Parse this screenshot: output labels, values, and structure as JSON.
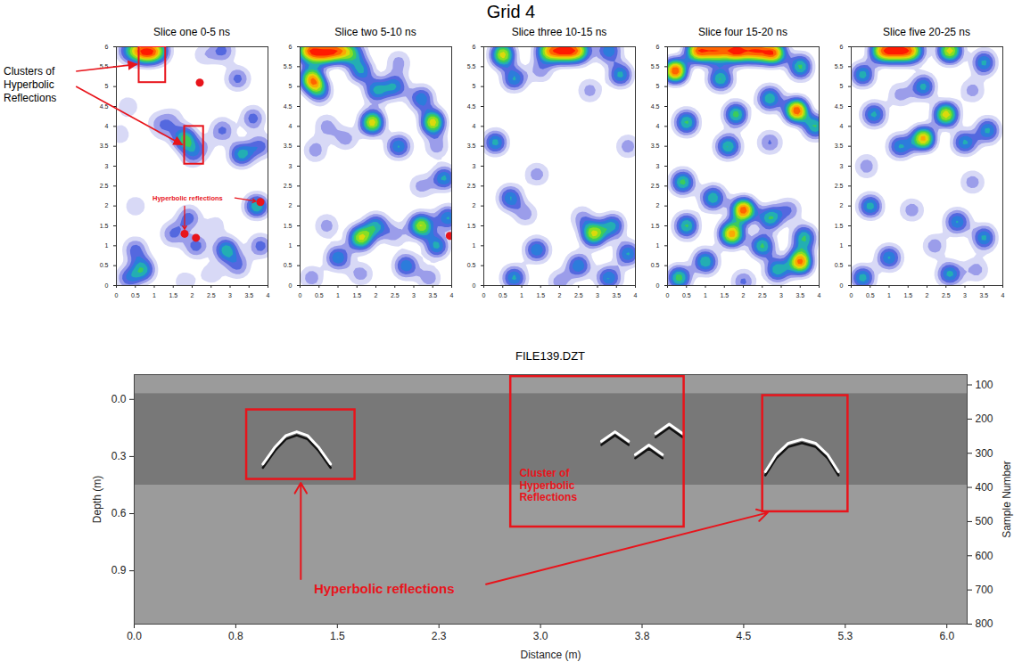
{
  "title": "Grid 4",
  "chart_data": [
    {
      "type": "contour",
      "title": "Slice one 0-5 ns",
      "xlim": [
        0,
        4
      ],
      "ylim": [
        0,
        6
      ],
      "xticks": [
        0,
        0.5,
        1,
        1.5,
        2,
        2.5,
        3,
        3.5,
        4
      ],
      "yticks": [
        0,
        0.5,
        1,
        1.5,
        2,
        2.5,
        3,
        3.5,
        4,
        4.5,
        5,
        5.5,
        6
      ],
      "anomalies": [
        [
          0.6,
          5.9,
          1
        ],
        [
          0.85,
          5.85,
          1
        ],
        [
          1.1,
          5.9,
          1
        ],
        [
          0.3,
          5.9,
          0.6
        ],
        [
          2.3,
          5.8,
          0.3
        ],
        [
          2.8,
          5.9,
          0.6
        ],
        [
          3.2,
          5.2,
          0.6
        ],
        [
          0.3,
          4.5,
          0.3
        ],
        [
          1.5,
          4.2,
          0.3
        ],
        [
          1.1,
          4.1,
          0.3
        ],
        [
          1.8,
          3.7,
          1
        ],
        [
          2.0,
          3.3,
          0.6
        ],
        [
          2.3,
          3.5,
          0.3
        ],
        [
          2.8,
          3.9,
          0.6
        ],
        [
          3.3,
          3.3,
          1
        ],
        [
          3.8,
          3.5,
          0.6
        ],
        [
          1.3,
          3.9,
          0.3
        ],
        [
          0.1,
          3.8,
          0.3
        ],
        [
          3.6,
          4.2,
          0.6
        ],
        [
          0.5,
          2.0,
          0.3
        ],
        [
          3.7,
          2.0,
          1
        ],
        [
          1.9,
          1.7,
          0.6
        ],
        [
          1.5,
          1.3,
          0.6
        ],
        [
          2.1,
          1.0,
          0.6
        ],
        [
          2.6,
          1.5,
          0.3
        ],
        [
          0.5,
          0.9,
          0.6
        ],
        [
          0.7,
          0.4,
          1
        ],
        [
          0.3,
          0.2,
          0.6
        ],
        [
          2.9,
          0.9,
          1
        ],
        [
          3.2,
          0.5,
          0.6
        ],
        [
          2.5,
          0.3,
          0.3
        ],
        [
          3.8,
          1.0,
          0.6
        ],
        [
          1.8,
          0.1,
          0.3
        ]
      ],
      "boxes": [
        [
          0.6,
          1.3,
          5.1,
          6
        ],
        [
          1.8,
          2.3,
          3.05,
          4.0
        ]
      ],
      "reflection_points": [
        [
          2.2,
          5.1
        ],
        [
          3.8,
          2.1
        ],
        [
          1.8,
          1.3
        ],
        [
          2.1,
          1.2
        ]
      ],
      "box_label": "Clusters of Hyperbolic Reflections",
      "point_label": "Hyperbolic reflections"
    },
    {
      "type": "contour",
      "title": "Slice two 5-10 ns",
      "xlim": [
        0,
        4
      ],
      "ylim": [
        0,
        6
      ],
      "xticks": [
        0,
        0.5,
        1,
        1.5,
        2,
        2.5,
        3,
        3.5,
        4
      ],
      "yticks": [
        0,
        0.5,
        1,
        1.5,
        2,
        2.5,
        3,
        3.5,
        4,
        4.5,
        5,
        5.5,
        6
      ],
      "anomalies": [
        [
          0.2,
          5.9,
          1
        ],
        [
          0.6,
          5.85,
          1
        ],
        [
          1.0,
          5.9,
          1
        ],
        [
          1.4,
          5.85,
          0.6
        ],
        [
          0.3,
          5.2,
          1
        ],
        [
          0.5,
          4.9,
          0.6
        ],
        [
          1.6,
          5.4,
          0.6
        ],
        [
          2.0,
          4.9,
          0.6
        ],
        [
          2.6,
          5.6,
          0.3
        ],
        [
          2.5,
          5.0,
          0.6
        ],
        [
          3.2,
          4.7,
          0.6
        ],
        [
          3.5,
          4.1,
          1
        ],
        [
          1.9,
          4.1,
          1
        ],
        [
          2.6,
          3.5,
          0.6
        ],
        [
          3.6,
          3.5,
          0.3
        ],
        [
          0.7,
          4.0,
          0.3
        ],
        [
          1.2,
          3.7,
          0.3
        ],
        [
          0.4,
          3.4,
          0.3
        ],
        [
          3.2,
          2.5,
          0.3
        ],
        [
          3.8,
          2.7,
          0.6
        ],
        [
          3.9,
          1.7,
          0.6
        ],
        [
          3.2,
          1.5,
          1
        ],
        [
          3.6,
          1.0,
          0.6
        ],
        [
          2.0,
          1.5,
          0.6
        ],
        [
          1.6,
          1.2,
          1
        ],
        [
          2.5,
          1.3,
          0.3
        ],
        [
          2.8,
          0.5,
          0.6
        ],
        [
          0.7,
          1.5,
          0.3
        ],
        [
          1.0,
          0.7,
          0.6
        ],
        [
          0.3,
          0.2,
          0.3
        ],
        [
          1.6,
          0.3,
          0.3
        ],
        [
          3.4,
          0.2,
          0.3
        ]
      ],
      "reflection_points": [
        [
          3.95,
          1.25
        ]
      ]
    },
    {
      "type": "contour",
      "title": "Slice three 10-15 ns",
      "xlim": [
        0,
        4
      ],
      "ylim": [
        0,
        6
      ],
      "xticks": [
        0,
        0.5,
        1,
        1.5,
        2,
        2.5,
        3,
        3.5,
        4
      ],
      "yticks": [
        0,
        0.5,
        1,
        1.5,
        2,
        2.5,
        3,
        3.5,
        4,
        4.5,
        5,
        5.5,
        6
      ],
      "anomalies": [
        [
          1.7,
          5.9,
          1
        ],
        [
          2.1,
          5.9,
          1
        ],
        [
          2.5,
          5.9,
          1
        ],
        [
          0.5,
          5.8,
          1
        ],
        [
          3.3,
          5.9,
          0.6
        ],
        [
          0.8,
          5.2,
          0.6
        ],
        [
          3.6,
          5.3,
          0.6
        ],
        [
          1.5,
          5.4,
          0.3
        ],
        [
          2.8,
          4.9,
          0.3
        ],
        [
          0.3,
          3.6,
          0.6
        ],
        [
          0.7,
          2.2,
          0.6
        ],
        [
          1.4,
          2.8,
          0.3
        ],
        [
          3.8,
          3.5,
          0.3
        ],
        [
          1.1,
          1.8,
          0.3
        ],
        [
          2.9,
          1.3,
          1
        ],
        [
          3.4,
          1.5,
          0.6
        ],
        [
          3.8,
          0.8,
          0.6
        ],
        [
          2.5,
          0.5,
          0.6
        ],
        [
          1.4,
          0.9,
          0.6
        ],
        [
          0.8,
          0.2,
          0.6
        ],
        [
          3.3,
          0.2,
          0.6
        ],
        [
          2.0,
          0.1,
          0.3
        ],
        [
          2.6,
          1.7,
          0.3
        ]
      ]
    },
    {
      "type": "contour",
      "title": "Slice four 15-20 ns",
      "xlim": [
        0,
        4
      ],
      "ylim": [
        0,
        6
      ],
      "xticks": [
        0,
        0.5,
        1,
        1.5,
        2,
        2.5,
        3,
        3.5,
        4
      ],
      "yticks": [
        0,
        0.5,
        1,
        1.5,
        2,
        2.5,
        3,
        3.5,
        4,
        4.5,
        5,
        5.5,
        6
      ],
      "anomalies": [
        [
          0.8,
          5.9,
          1
        ],
        [
          1.3,
          5.9,
          1
        ],
        [
          1.8,
          5.9,
          1
        ],
        [
          2.3,
          5.9,
          1
        ],
        [
          2.8,
          5.85,
          1
        ],
        [
          0.2,
          5.4,
          1
        ],
        [
          1.4,
          5.2,
          0.6
        ],
        [
          3.5,
          5.5,
          0.6
        ],
        [
          2.7,
          4.7,
          0.6
        ],
        [
          1.8,
          4.3,
          0.6
        ],
        [
          3.4,
          4.4,
          1
        ],
        [
          3.9,
          4.0,
          0.6
        ],
        [
          1.6,
          3.5,
          0.6
        ],
        [
          0.5,
          4.1,
          0.6
        ],
        [
          2.7,
          3.6,
          0.3
        ],
        [
          0.4,
          2.6,
          0.6
        ],
        [
          1.2,
          2.2,
          0.6
        ],
        [
          2.0,
          1.9,
          1
        ],
        [
          2.7,
          1.7,
          0.6
        ],
        [
          3.2,
          1.9,
          0.3
        ],
        [
          0.5,
          1.5,
          0.6
        ],
        [
          1.7,
          1.3,
          1
        ],
        [
          2.5,
          1.0,
          0.6
        ],
        [
          3.6,
          1.2,
          0.6
        ],
        [
          1.0,
          0.6,
          0.6
        ],
        [
          2.9,
          0.4,
          0.6
        ],
        [
          3.5,
          0.6,
          1
        ],
        [
          0.3,
          0.2,
          0.6
        ],
        [
          2.0,
          0.1,
          0.3
        ]
      ]
    },
    {
      "type": "contour",
      "title": "Slice five 20-25 ns",
      "xlim": [
        0,
        4
      ],
      "ylim": [
        0,
        6
      ],
      "xticks": [
        0,
        0.5,
        1,
        1.5,
        2,
        2.5,
        3,
        3.5,
        4
      ],
      "yticks": [
        0,
        0.5,
        1,
        1.5,
        2,
        2.5,
        3,
        3.5,
        4,
        4.5,
        5,
        5.5,
        6
      ],
      "anomalies": [
        [
          0.8,
          5.9,
          1
        ],
        [
          1.2,
          5.9,
          1
        ],
        [
          1.6,
          5.9,
          1
        ],
        [
          2.6,
          5.9,
          1
        ],
        [
          3.5,
          5.6,
          0.6
        ],
        [
          0.3,
          5.3,
          0.6
        ],
        [
          1.9,
          5.0,
          0.6
        ],
        [
          1.3,
          4.8,
          0.3
        ],
        [
          3.2,
          4.9,
          0.3
        ],
        [
          2.5,
          4.3,
          1
        ],
        [
          0.6,
          4.3,
          0.6
        ],
        [
          1.9,
          3.7,
          1
        ],
        [
          1.3,
          3.5,
          0.6
        ],
        [
          3.0,
          3.6,
          0.6
        ],
        [
          3.6,
          3.9,
          0.6
        ],
        [
          0.4,
          3.0,
          0.3
        ],
        [
          3.2,
          2.6,
          0.3
        ],
        [
          0.5,
          2.0,
          0.6
        ],
        [
          1.6,
          1.9,
          0.3
        ],
        [
          2.8,
          1.6,
          0.6
        ],
        [
          3.5,
          1.2,
          0.6
        ],
        [
          2.2,
          1.0,
          0.3
        ],
        [
          1.0,
          0.7,
          0.6
        ],
        [
          0.3,
          0.2,
          0.6
        ],
        [
          2.6,
          0.3,
          0.6
        ],
        [
          3.3,
          0.4,
          0.3
        ]
      ]
    },
    {
      "type": "radargram",
      "title": "FILE139.DZT",
      "xlabel": "Distance (m)",
      "ylabel": "Depth (m)",
      "y2label": "Sample Number",
      "xlim": [
        0,
        6.15
      ],
      "ylim": [
        -0.13,
        1.18
      ],
      "y2lim": [
        70,
        800
      ],
      "xticks": [
        {
          "value": 0,
          "label": "0.0"
        },
        {
          "value": 0.75,
          "label": "0.8"
        },
        {
          "value": 1.5,
          "label": "1.5"
        },
        {
          "value": 2.25,
          "label": "2.3"
        },
        {
          "value": 3,
          "label": "3.0"
        },
        {
          "value": 3.75,
          "label": "3.8"
        },
        {
          "value": 4.5,
          "label": "4.5"
        },
        {
          "value": 5.25,
          "label": "5.3"
        },
        {
          "value": 6,
          "label": "6.0"
        }
      ],
      "yticks": [
        {
          "value": 0,
          "label": "0.0"
        },
        0.3,
        0.6,
        0.9
      ],
      "y2ticks": [
        100,
        200,
        300,
        400,
        500,
        600,
        700,
        800
      ],
      "textured_zone": [
        -0.03,
        0.45
      ],
      "hyperbolas": [
        [
          [
            0.95,
            0.34
          ],
          [
            1.04,
            0.25
          ],
          [
            1.12,
            0.19
          ],
          [
            1.2,
            0.17
          ],
          [
            1.28,
            0.19
          ],
          [
            1.36,
            0.25
          ],
          [
            1.45,
            0.34
          ]
        ],
        [
          [
            4.66,
            0.38
          ],
          [
            4.74,
            0.29
          ],
          [
            4.83,
            0.23
          ],
          [
            4.93,
            0.21
          ],
          [
            5.03,
            0.23
          ],
          [
            5.12,
            0.29
          ],
          [
            5.2,
            0.38
          ]
        ],
        [
          [
            3.45,
            0.22
          ],
          [
            3.55,
            0.17
          ],
          [
            3.65,
            0.22
          ]
        ],
        [
          [
            3.7,
            0.29
          ],
          [
            3.8,
            0.24
          ],
          [
            3.9,
            0.29
          ]
        ],
        [
          [
            3.85,
            0.18
          ],
          [
            3.95,
            0.13
          ],
          [
            4.05,
            0.18
          ]
        ]
      ],
      "boxes": [
        {
          "x": [
            0.83,
            1.63
          ],
          "y": [
            0.055,
            0.42
          ]
        },
        {
          "x": [
            2.78,
            4.06
          ],
          "y": [
            -0.12,
            0.67
          ],
          "label": "Cluster of Hyperbolic Reflections"
        },
        {
          "x": [
            4.64,
            5.27
          ],
          "y": [
            -0.02,
            0.59
          ]
        }
      ],
      "point_label": "Hyperbolic reflections"
    }
  ]
}
